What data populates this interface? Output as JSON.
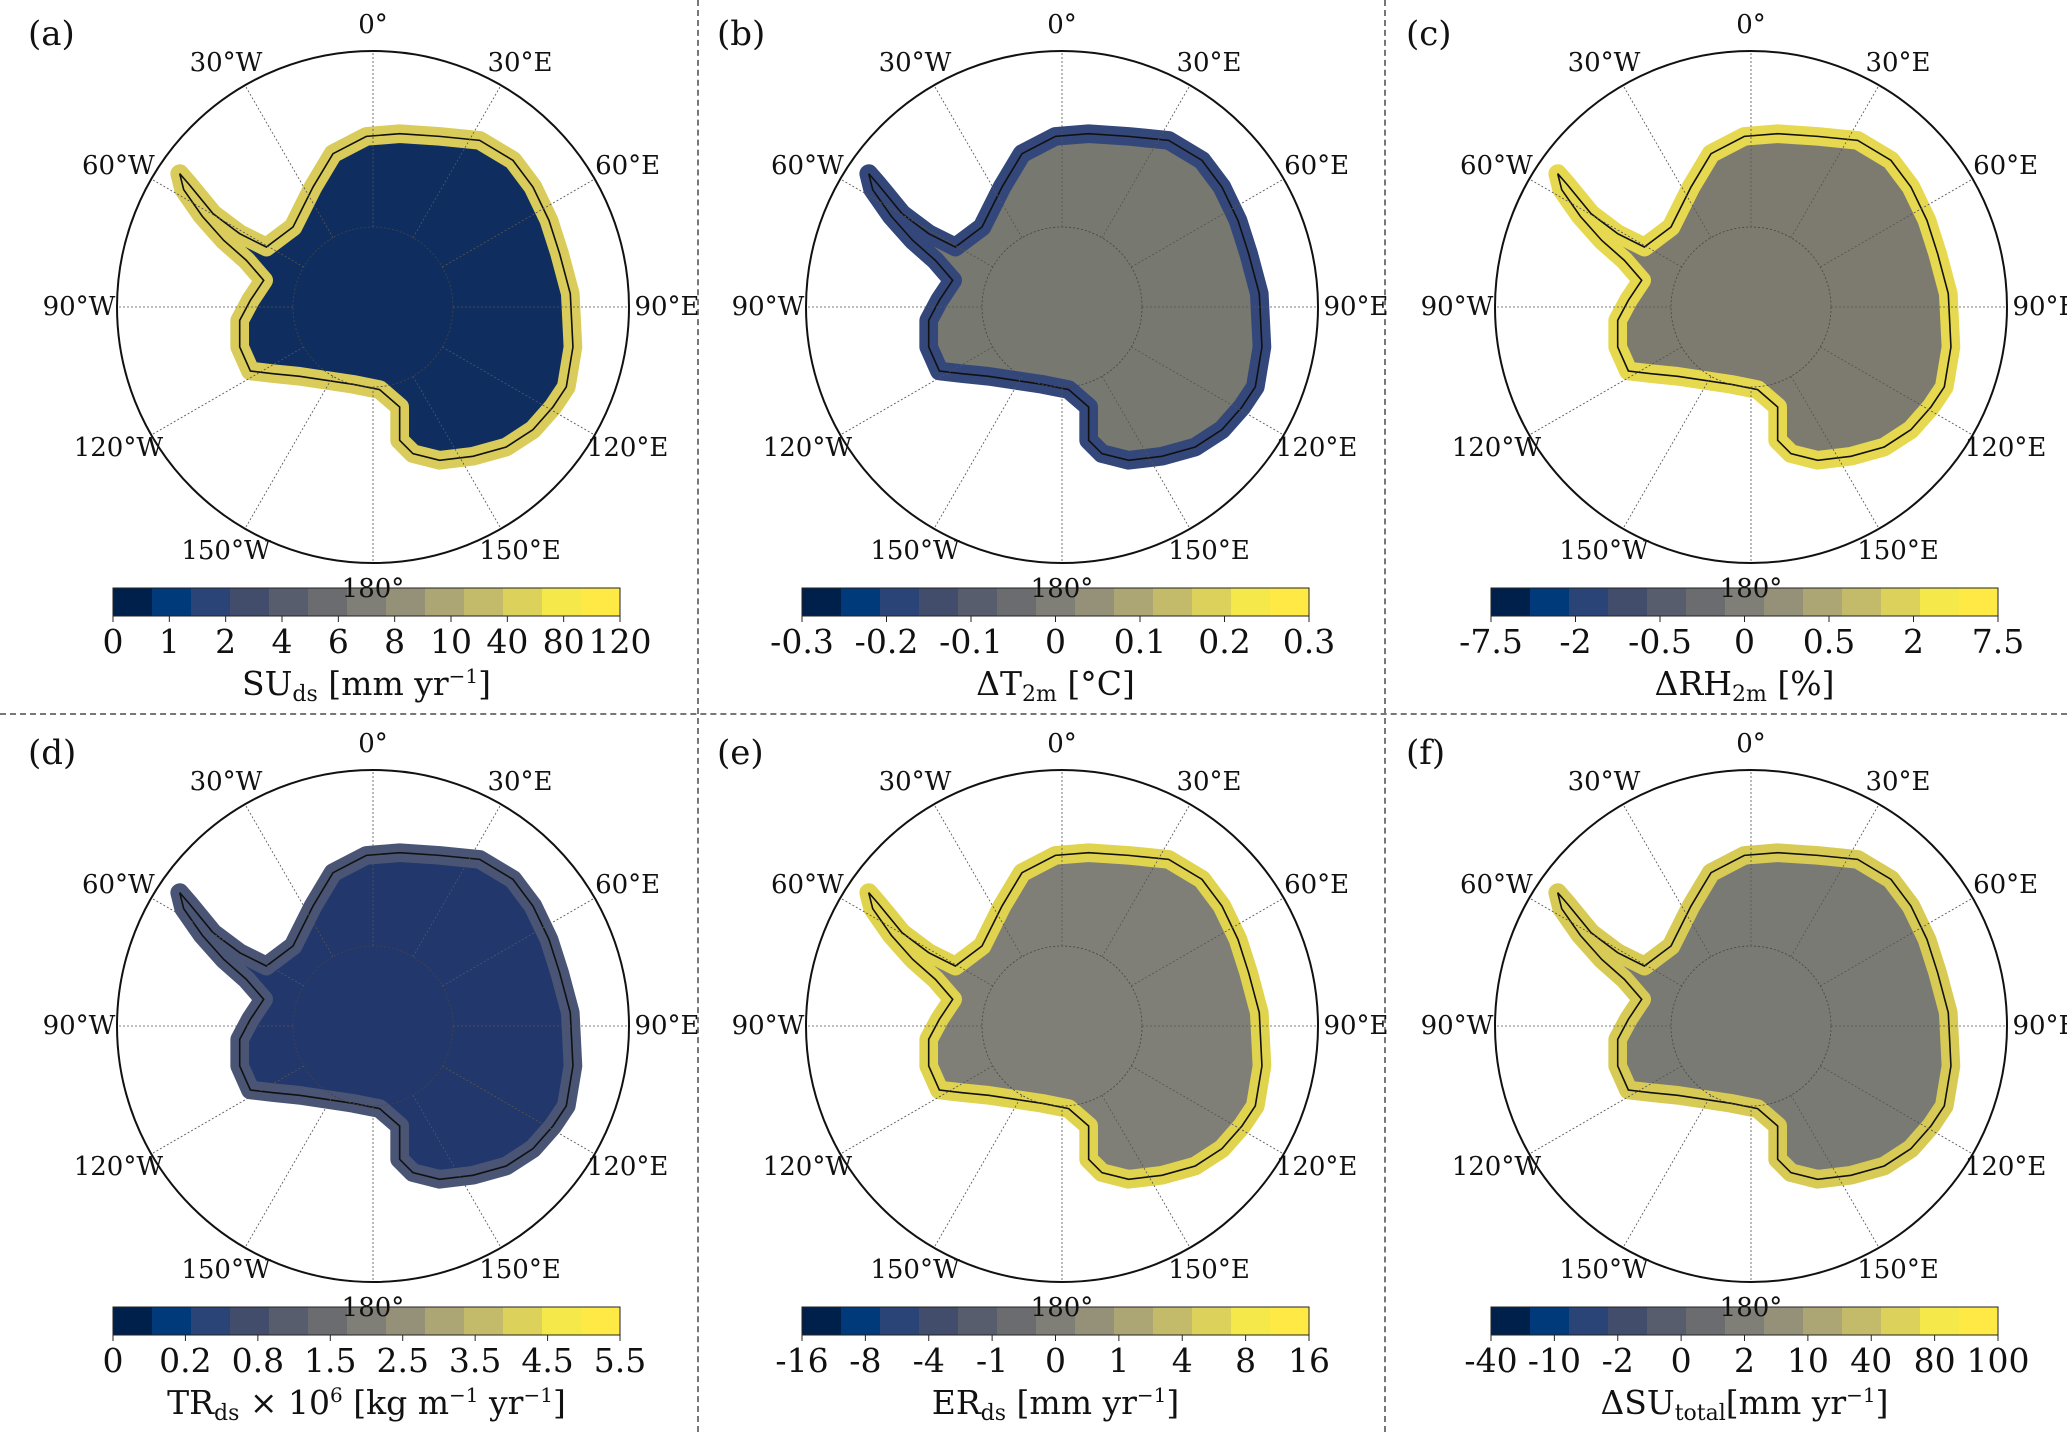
{
  "palette": [
    "#00204c",
    "#013a7a",
    "#2b4478",
    "#414d6b",
    "#575d6d",
    "#6b6c70",
    "#7f7f78",
    "#959179",
    "#aca674",
    "#c4bb6a",
    "#dcd15b",
    "#f4e84a",
    "#ffe945"
  ],
  "meridians": [
    {
      "label": "0°",
      "deg": 0
    },
    {
      "label": "30°E",
      "deg": 30
    },
    {
      "label": "60°E",
      "deg": 60
    },
    {
      "label": "90°E",
      "deg": 90
    },
    {
      "label": "120°E",
      "deg": 120
    },
    {
      "label": "150°E",
      "deg": 150
    },
    {
      "label": "180°",
      "deg": 180
    },
    {
      "label": "150°W",
      "deg": 210
    },
    {
      "label": "120°W",
      "deg": 240
    },
    {
      "label": "90°W",
      "deg": 270
    },
    {
      "label": "60°W",
      "deg": 300
    },
    {
      "label": "30°W",
      "deg": 330
    }
  ],
  "panels": [
    {
      "id": "a",
      "label": "(a)",
      "fill": "#0f2d5e",
      "coast": "#d9cc5a",
      "ticks": [
        "0",
        "1",
        "2",
        "4",
        "6",
        "8",
        "10",
        "40",
        "80",
        "120"
      ],
      "axis_label": [
        {
          "t": "SU"
        },
        {
          "t": "ds",
          "sub": true
        },
        {
          "t": " [mm yr"
        },
        {
          "t": "−1",
          "sup": true
        },
        {
          "t": "]"
        }
      ]
    },
    {
      "id": "b",
      "label": "(b)",
      "fill": "#77786f",
      "coast": "#34477a",
      "ticks": [
        "-0.3",
        "-0.2",
        "-0.1",
        "0",
        "0.1",
        "0.2",
        "0.3"
      ],
      "axis_label": [
        {
          "t": "ΔT"
        },
        {
          "t": "2m",
          "sub": true
        },
        {
          "t": " [°C]"
        }
      ]
    },
    {
      "id": "c",
      "label": "(c)",
      "fill": "#7d7b70",
      "coast": "#e6d84f",
      "ticks": [
        "-7.5",
        "-2",
        "-0.5",
        "0",
        "0.5",
        "2",
        "7.5"
      ],
      "axis_label": [
        {
          "t": "ΔRH"
        },
        {
          "t": "2m",
          "sub": true
        },
        {
          "t": " [%]"
        }
      ]
    },
    {
      "id": "d",
      "label": "(d)",
      "fill": "#22376b",
      "coast": "#4a5575",
      "ticks": [
        "0",
        "0.2",
        "0.8",
        "1.5",
        "2.5",
        "3.5",
        "4.5",
        "5.5"
      ],
      "axis_label": [
        {
          "t": "TR"
        },
        {
          "t": "ds",
          "sub": true
        },
        {
          "t": " × 10"
        },
        {
          "t": "6",
          "sup": true
        },
        {
          "t": " [kg m"
        },
        {
          "t": "−1",
          "sup": true
        },
        {
          "t": " yr"
        },
        {
          "t": "−1",
          "sup": true
        },
        {
          "t": "]"
        }
      ]
    },
    {
      "id": "e",
      "label": "(e)",
      "fill": "#7f7f77",
      "coast": "#e0d34e",
      "ticks": [
        "-16",
        "-8",
        "-4",
        "-1",
        "0",
        "1",
        "4",
        "8",
        "16"
      ],
      "axis_label": [
        {
          "t": "ER"
        },
        {
          "t": "ds",
          "sub": true
        },
        {
          "t": " [mm yr"
        },
        {
          "t": "−1",
          "sup": true
        },
        {
          "t": "]"
        }
      ]
    },
    {
      "id": "f",
      "label": "(f)",
      "fill": "#7a7a74",
      "coast": "#d8cb55",
      "ticks": [
        "-40",
        "-10",
        "-2",
        "0",
        "2",
        "10",
        "40",
        "80",
        "100"
      ],
      "axis_label": [
        {
          "t": "ΔSU"
        },
        {
          "t": "total",
          "sub": true
        },
        {
          "t": "[mm yr"
        },
        {
          "t": "−1",
          "sup": true
        },
        {
          "t": "]"
        }
      ]
    }
  ]
}
